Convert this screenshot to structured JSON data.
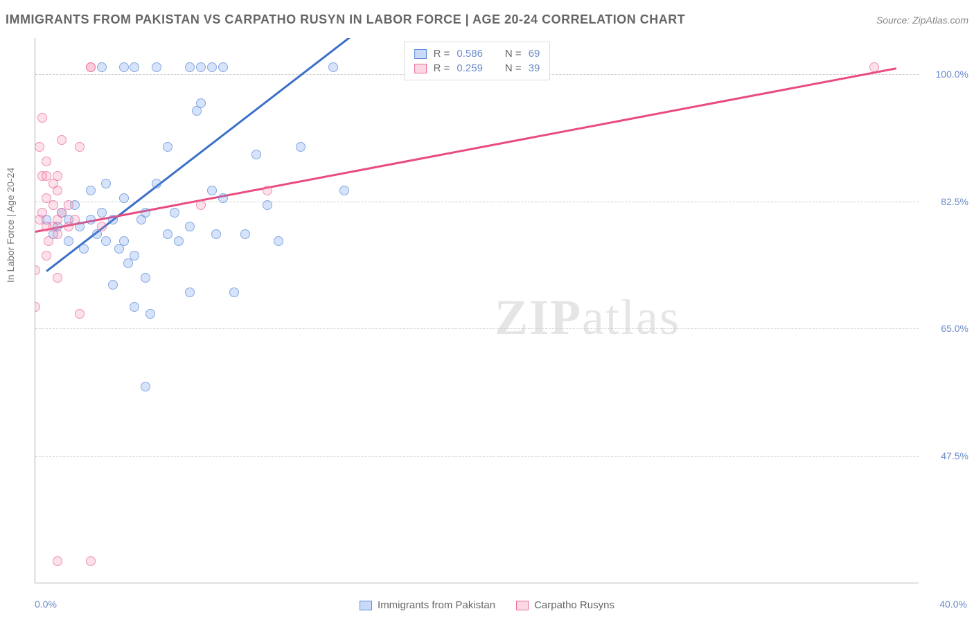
{
  "title": "IMMIGRANTS FROM PAKISTAN VS CARPATHO RUSYN IN LABOR FORCE | AGE 20-24 CORRELATION CHART",
  "source": "Source: ZipAtlas.com",
  "watermark_a": "ZIP",
  "watermark_b": "atlas",
  "chart": {
    "type": "scatter",
    "y_axis_label": "In Labor Force | Age 20-24",
    "xlim": [
      0,
      40
    ],
    "ylim": [
      30,
      105
    ],
    "x_ticks": [
      0,
      10,
      20,
      30,
      40
    ],
    "x_tick_labels_shown": {
      "0": "0.0%",
      "40": "40.0%"
    },
    "y_gridlines": [
      47.5,
      65.0,
      82.5,
      100.0
    ],
    "y_tick_labels": [
      "47.5%",
      "65.0%",
      "82.5%",
      "100.0%"
    ],
    "background_color": "#ffffff",
    "grid_color": "#cccccc",
    "axis_color": "#aaaaaa",
    "tick_label_color": "#6a8bc9",
    "title_color": "#666666",
    "title_fontsize": 18,
    "label_fontsize": 14,
    "marker_size": 14,
    "series": [
      {
        "name": "Immigrants from Pakistan",
        "color_fill": "rgba(100,149,237,0.35)",
        "color_stroke": "#5b8cd6",
        "trend_color": "#3b6fc9",
        "R": "0.586",
        "N": "69",
        "trend_start": [
          0.5,
          73
        ],
        "trend_end": [
          15,
          107
        ],
        "points": [
          [
            0.5,
            80
          ],
          [
            0.8,
            78
          ],
          [
            1.0,
            79
          ],
          [
            1.2,
            81
          ],
          [
            1.5,
            77
          ],
          [
            1.5,
            80
          ],
          [
            1.8,
            82
          ],
          [
            2.0,
            79
          ],
          [
            2.2,
            76
          ],
          [
            2.5,
            80
          ],
          [
            2.5,
            84
          ],
          [
            2.8,
            78
          ],
          [
            3.0,
            81
          ],
          [
            3.0,
            101
          ],
          [
            3.2,
            77
          ],
          [
            3.2,
            85
          ],
          [
            3.5,
            80
          ],
          [
            3.5,
            71
          ],
          [
            3.8,
            76
          ],
          [
            4.0,
            77
          ],
          [
            4.0,
            83
          ],
          [
            4.0,
            101
          ],
          [
            4.2,
            74
          ],
          [
            4.5,
            75
          ],
          [
            4.5,
            68
          ],
          [
            4.5,
            101
          ],
          [
            4.8,
            80
          ],
          [
            5.0,
            81
          ],
          [
            5.0,
            72
          ],
          [
            5.0,
            57
          ],
          [
            5.2,
            67
          ],
          [
            5.5,
            85
          ],
          [
            5.5,
            101
          ],
          [
            6.0,
            90
          ],
          [
            6.0,
            78
          ],
          [
            6.3,
            81
          ],
          [
            6.5,
            77
          ],
          [
            7.0,
            79
          ],
          [
            7.0,
            70
          ],
          [
            7.0,
            101
          ],
          [
            7.3,
            95
          ],
          [
            7.5,
            96
          ],
          [
            7.5,
            101
          ],
          [
            8.0,
            101
          ],
          [
            8.0,
            84
          ],
          [
            8.2,
            78
          ],
          [
            8.5,
            83
          ],
          [
            8.5,
            101
          ],
          [
            9.0,
            70
          ],
          [
            9.5,
            78
          ],
          [
            10.0,
            89
          ],
          [
            10.5,
            82
          ],
          [
            11.0,
            77
          ],
          [
            12.0,
            90
          ],
          [
            13.5,
            101
          ],
          [
            14.0,
            84
          ]
        ]
      },
      {
        "name": "Carpho Rusyns",
        "display_name": "Carpatho Rusyns",
        "color_fill": "rgba(244,143,177,0.35)",
        "color_stroke": "#ec6a9a",
        "trend_color": "#e94b7e",
        "R": "0.259",
        "N": "39",
        "trend_start": [
          0,
          78.5
        ],
        "trend_end": [
          39,
          101
        ],
        "points": [
          [
            0.0,
            68
          ],
          [
            0.0,
            73
          ],
          [
            0.2,
            90
          ],
          [
            0.2,
            80
          ],
          [
            0.3,
            86
          ],
          [
            0.3,
            94
          ],
          [
            0.3,
            81
          ],
          [
            0.5,
            79
          ],
          [
            0.5,
            75
          ],
          [
            0.5,
            83
          ],
          [
            0.5,
            86
          ],
          [
            0.5,
            88
          ],
          [
            0.6,
            77
          ],
          [
            0.8,
            79
          ],
          [
            0.8,
            82
          ],
          [
            0.8,
            85
          ],
          [
            1.0,
            80
          ],
          [
            1.0,
            78
          ],
          [
            1.0,
            72
          ],
          [
            1.0,
            84
          ],
          [
            1.0,
            86
          ],
          [
            1.2,
            81
          ],
          [
            1.2,
            91
          ],
          [
            1.5,
            79
          ],
          [
            1.5,
            82
          ],
          [
            1.8,
            80
          ],
          [
            2.0,
            90
          ],
          [
            2.0,
            67
          ],
          [
            2.5,
            101
          ],
          [
            2.5,
            101
          ],
          [
            3.0,
            79
          ],
          [
            7.5,
            82
          ],
          [
            10.5,
            84
          ],
          [
            38.0,
            101
          ],
          [
            1.0,
            33
          ],
          [
            2.5,
            33
          ]
        ]
      }
    ]
  },
  "legend_top": {
    "rows": [
      {
        "swatch": "blue",
        "r_label": "R =",
        "r_val": "0.586",
        "n_label": "N =",
        "n_val": "69"
      },
      {
        "swatch": "pink",
        "r_label": "R =",
        "r_val": "0.259",
        "n_label": "N =",
        "n_val": "39"
      }
    ]
  },
  "legend_bottom": {
    "items": [
      {
        "swatch": "blue",
        "label": "Immigrants from Pakistan"
      },
      {
        "swatch": "pink",
        "label": "Carpatho Rusyns"
      }
    ]
  }
}
